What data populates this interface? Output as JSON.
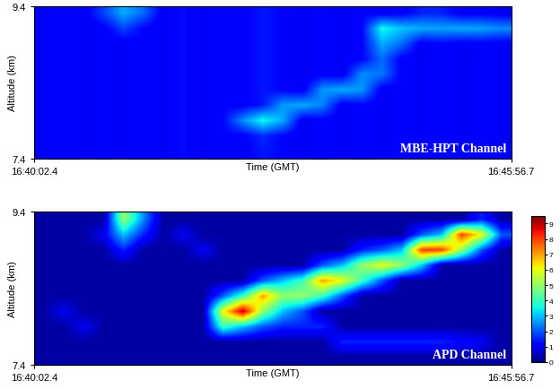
{
  "chart_data": [
    {
      "type": "heatmap",
      "annotation": "MBE-HPT Channel",
      "x_label": "Time (GMT)",
      "y_label": "Altitude (km)",
      "xlim": [
        0,
        354.3
      ],
      "xticks": [
        {
          "value": 0,
          "label": "16:40:02.4"
        },
        {
          "value": 354.3,
          "label": "16:45:56.7"
        }
      ],
      "ylim": [
        7.4,
        9.4
      ],
      "yticks": [
        7.4,
        9.4
      ],
      "color_range": [
        0,
        9.5
      ],
      "cells": [
        [
          1.0,
          1.2,
          1.0,
          1.1,
          1.0,
          1.2,
          1.0,
          1.3,
          1.0,
          1.2,
          1.1,
          1.4,
          1.2,
          1.0,
          1.1,
          1.0,
          1.2,
          1.0,
          1.1,
          1.0,
          1.2,
          1.0,
          1.1,
          1.0
        ],
        [
          1.0,
          1.2,
          1.0,
          1.1,
          1.0,
          1.2,
          1.0,
          1.3,
          1.0,
          1.2,
          1.1,
          1.6,
          1.2,
          1.0,
          1.1,
          1.0,
          1.2,
          1.0,
          1.1,
          1.0,
          1.2,
          1.0,
          1.1,
          1.0
        ],
        [
          1.0,
          1.2,
          1.0,
          1.1,
          1.0,
          1.2,
          1.0,
          1.3,
          1.0,
          1.2,
          2.5,
          3.6,
          2.8,
          1.0,
          1.1,
          1.0,
          1.2,
          1.0,
          1.1,
          1.0,
          1.2,
          1.0,
          1.1,
          1.0
        ],
        [
          1.0,
          1.2,
          1.0,
          1.1,
          1.0,
          1.2,
          1.0,
          1.3,
          1.0,
          1.2,
          1.1,
          1.4,
          2.6,
          2.8,
          2.4,
          1.0,
          1.2,
          1.0,
          1.1,
          1.0,
          1.2,
          1.0,
          1.1,
          1.0
        ],
        [
          1.0,
          1.2,
          1.0,
          1.1,
          1.0,
          1.2,
          1.0,
          1.3,
          1.0,
          1.2,
          1.1,
          1.4,
          1.2,
          1.0,
          2.6,
          2.8,
          2.6,
          1.0,
          1.1,
          1.0,
          1.2,
          1.0,
          1.1,
          1.0
        ],
        [
          1.0,
          1.2,
          1.0,
          1.1,
          1.0,
          1.2,
          1.0,
          1.3,
          1.0,
          1.2,
          1.1,
          1.4,
          1.2,
          1.0,
          1.1,
          1.0,
          2.5,
          2.3,
          1.1,
          1.0,
          1.2,
          1.0,
          1.1,
          1.0
        ],
        [
          1.0,
          1.2,
          1.0,
          1.1,
          1.0,
          1.2,
          1.0,
          1.3,
          1.0,
          1.2,
          1.1,
          1.4,
          1.2,
          1.0,
          1.1,
          1.0,
          1.2,
          2.2,
          1.1,
          1.0,
          1.2,
          1.0,
          1.1,
          1.0
        ],
        [
          1.0,
          1.2,
          1.0,
          1.1,
          1.0,
          1.2,
          1.0,
          1.3,
          1.0,
          1.2,
          1.1,
          1.4,
          1.2,
          1.0,
          1.1,
          1.0,
          1.2,
          2.8,
          2.2,
          1.0,
          1.2,
          1.0,
          1.1,
          1.0
        ],
        [
          1.0,
          1.2,
          1.0,
          1.1,
          1.8,
          1.2,
          1.0,
          1.3,
          1.0,
          1.2,
          1.1,
          1.4,
          1.2,
          1.0,
          1.1,
          1.0,
          1.2,
          3.6,
          3.0,
          2.8,
          2.7,
          2.8,
          2.7,
          2.5
        ],
        [
          1.0,
          1.2,
          1.0,
          1.8,
          2.8,
          2.2,
          1.0,
          1.3,
          1.0,
          1.2,
          1.1,
          1.4,
          1.2,
          1.0,
          1.1,
          1.0,
          1.2,
          1.0,
          1.1,
          1.5,
          1.5,
          1.0,
          1.1,
          1.0
        ]
      ]
    },
    {
      "type": "heatmap",
      "annotation": "APD Channel",
      "x_label": "Time (GMT)",
      "y_label": "Altitude (km)",
      "xlim": [
        0,
        354.3
      ],
      "xticks": [
        {
          "value": 0,
          "label": "16:40:02.4"
        },
        {
          "value": 354.3,
          "label": "16:45:56.7"
        }
      ],
      "ylim": [
        7.4,
        9.4
      ],
      "yticks": [
        7.4,
        9.4
      ],
      "color_range": [
        0,
        9.5
      ],
      "colorbar_ticks": [
        0,
        1,
        2,
        3,
        4,
        5,
        6,
        7,
        8,
        9
      ],
      "cells": [
        [
          0.3,
          0.3,
          0.3,
          0.3,
          0.3,
          0.3,
          0.3,
          0.3,
          0.3,
          0.3,
          0.3,
          0.3,
          0.3,
          0.3,
          0.3,
          0.3,
          0.3,
          0.3,
          0.3,
          0.3,
          0.3,
          0.3,
          0.3,
          0.3
        ],
        [
          0.3,
          0.3,
          0.3,
          0.3,
          0.3,
          0.3,
          0.3,
          0.3,
          0.3,
          0.3,
          0.3,
          0.3,
          0.3,
          0.3,
          0.3,
          1.5,
          1.5,
          1.5,
          1.5,
          1.5,
          1.5,
          1.2,
          1.0,
          0.3
        ],
        [
          0.3,
          0.3,
          1.0,
          0.3,
          0.3,
          0.3,
          0.3,
          0.3,
          0.3,
          4.0,
          3.0,
          2.0,
          1.5,
          1.5,
          1.5,
          0.3,
          0.3,
          0.3,
          0.3,
          0.3,
          0.3,
          0.3,
          0.3,
          0.3
        ],
        [
          0.3,
          1.0,
          0.3,
          0.3,
          0.3,
          0.3,
          0.3,
          0.3,
          0.3,
          6.0,
          9.0,
          5.0,
          3.0,
          2.0,
          0.3,
          0.3,
          0.3,
          0.3,
          0.3,
          0.3,
          0.3,
          0.3,
          0.3,
          0.3
        ],
        [
          0.3,
          0.3,
          0.3,
          0.3,
          0.3,
          0.3,
          0.3,
          0.3,
          0.3,
          2.0,
          4.0,
          7.0,
          5.0,
          5.0,
          4.0,
          2.0,
          0.3,
          0.3,
          0.3,
          0.3,
          0.3,
          0.3,
          0.3,
          0.3
        ],
        [
          0.3,
          0.3,
          0.3,
          0.3,
          0.3,
          0.3,
          0.3,
          0.3,
          0.3,
          0.3,
          0.3,
          2.0,
          3.0,
          4.0,
          7.0,
          6.0,
          4.0,
          2.0,
          0.3,
          0.3,
          0.3,
          0.3,
          0.3,
          0.3
        ],
        [
          0.3,
          0.3,
          0.3,
          0.3,
          0.3,
          0.3,
          0.3,
          0.3,
          0.3,
          0.3,
          0.3,
          0.3,
          0.3,
          0.3,
          2.0,
          3.0,
          5.0,
          6.0,
          5.0,
          3.0,
          0.3,
          0.3,
          0.3,
          0.3
        ],
        [
          0.3,
          0.3,
          0.3,
          0.3,
          1.5,
          0.3,
          0.3,
          0.3,
          1.0,
          0.3,
          0.3,
          0.3,
          0.3,
          0.3,
          0.3,
          0.3,
          1.5,
          2.0,
          3.0,
          8.0,
          8.0,
          5.0,
          2.0,
          0.3
        ],
        [
          0.3,
          0.3,
          0.3,
          1.0,
          3.0,
          1.5,
          0.3,
          1.0,
          0.3,
          0.3,
          0.3,
          0.3,
          0.3,
          0.3,
          0.3,
          0.3,
          0.3,
          0.3,
          0.3,
          2.0,
          3.0,
          8.0,
          6.0,
          2.0
        ],
        [
          0.3,
          0.3,
          0.3,
          0.3,
          5.0,
          2.5,
          0.3,
          0.3,
          0.3,
          0.3,
          0.3,
          0.3,
          0.3,
          0.3,
          0.3,
          0.3,
          0.3,
          0.3,
          0.3,
          0.3,
          0.3,
          0.3,
          1.5,
          0.3
        ]
      ]
    }
  ]
}
